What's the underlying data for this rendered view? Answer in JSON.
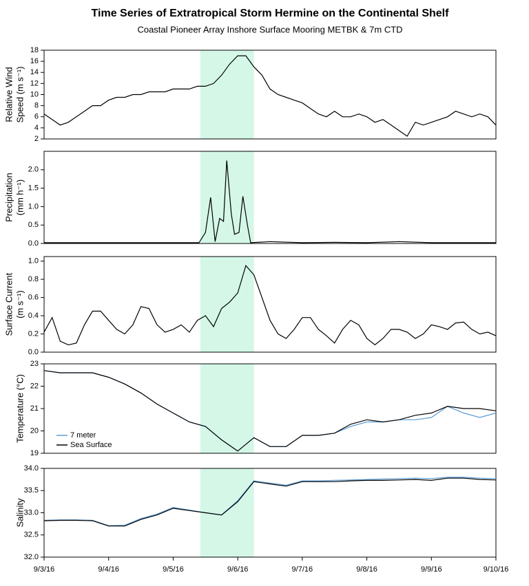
{
  "title": "Time Series of Extratropical Storm Hermine on the Continental Shelf",
  "subtitle": "Coastal Pioneer Array Inshore Surface Mooring METBK & 7m CTD",
  "shade": {
    "from": 2.42,
    "to": 3.25,
    "color": "#d4f7e8"
  },
  "chart_data": [
    {
      "type": "line",
      "ylabel": [
        "Relative Wind",
        "Speed (m s⁻¹)"
      ],
      "x": [
        0,
        0.125,
        0.25,
        0.375,
        0.5,
        0.625,
        0.75,
        0.875,
        1,
        1.125,
        1.25,
        1.375,
        1.5,
        1.625,
        1.75,
        1.875,
        2,
        2.125,
        2.25,
        2.375,
        2.5,
        2.625,
        2.75,
        2.875,
        3,
        3.125,
        3.25,
        3.375,
        3.5,
        3.625,
        3.75,
        3.875,
        4,
        4.125,
        4.25,
        4.375,
        4.5,
        4.625,
        4.75,
        4.875,
        5,
        5.125,
        5.25,
        5.375,
        5.5,
        5.625,
        5.75,
        5.875,
        6,
        6.125,
        6.25,
        6.375,
        6.5,
        6.625,
        6.75,
        6.875,
        7
      ],
      "series": [
        {
          "color": "#000000",
          "values": [
            6.5,
            5.5,
            4.5,
            5.0,
            6.0,
            7.0,
            8.0,
            8.0,
            9.0,
            9.5,
            9.5,
            10.0,
            10.0,
            10.5,
            10.5,
            10.5,
            11.0,
            11.0,
            11.0,
            11.5,
            11.5,
            12.0,
            13.5,
            15.5,
            17.0,
            17.0,
            15.0,
            13.5,
            11.0,
            10.0,
            9.5,
            9.0,
            8.5,
            7.5,
            6.5,
            6.0,
            7.0,
            6.0,
            6.0,
            6.5,
            6.0,
            5.0,
            5.5,
            4.5,
            3.5,
            2.5,
            5.0,
            4.5,
            5.0,
            5.5,
            6.0,
            7.0,
            6.5,
            6.0,
            6.5,
            6.0,
            4.5
          ]
        }
      ],
      "ylim": [
        2,
        18
      ],
      "yticks": [
        2,
        4,
        6,
        8,
        10,
        12,
        14,
        16,
        18
      ]
    },
    {
      "type": "line",
      "ylabel": [
        "Precipitation",
        "(mm h⁻¹)"
      ],
      "x": [
        0,
        0.5,
        1,
        1.5,
        2,
        2.4,
        2.5,
        2.58,
        2.65,
        2.72,
        2.78,
        2.83,
        2.9,
        2.95,
        3.02,
        3.08,
        3.15,
        3.2,
        3.5,
        4,
        4.5,
        5,
        5.5,
        6,
        6.5,
        7
      ],
      "series": [
        {
          "color": "#000000",
          "values": [
            0.02,
            0.02,
            0.02,
            0.02,
            0.02,
            0.02,
            0.3,
            1.25,
            0.05,
            0.68,
            0.6,
            2.25,
            0.8,
            0.25,
            0.3,
            1.28,
            0.5,
            0.02,
            0.05,
            0.02,
            0.03,
            0.02,
            0.05,
            0.02,
            0.02,
            0.02
          ]
        }
      ],
      "ylim": [
        0,
        2.5
      ],
      "yticks": [
        {
          "value": 0,
          "label": "0.0"
        },
        0.5,
        {
          "value": 1,
          "label": "1.0"
        },
        1.5,
        {
          "value": 2,
          "label": "2.0"
        }
      ]
    },
    {
      "type": "line",
      "ylabel": [
        "Surface Current",
        "(m s⁻¹)"
      ],
      "x": [
        0,
        0.125,
        0.25,
        0.375,
        0.5,
        0.625,
        0.75,
        0.875,
        1,
        1.125,
        1.25,
        1.375,
        1.5,
        1.625,
        1.75,
        1.875,
        2,
        2.125,
        2.25,
        2.375,
        2.5,
        2.625,
        2.75,
        2.875,
        3,
        3.125,
        3.25,
        3.375,
        3.5,
        3.625,
        3.75,
        3.875,
        4,
        4.125,
        4.25,
        4.375,
        4.5,
        4.625,
        4.75,
        4.875,
        5,
        5.125,
        5.25,
        5.375,
        5.5,
        5.625,
        5.75,
        5.875,
        6,
        6.125,
        6.25,
        6.375,
        6.5,
        6.625,
        6.75,
        6.875,
        7
      ],
      "series": [
        {
          "color": "#000000",
          "values": [
            0.22,
            0.38,
            0.12,
            0.08,
            0.1,
            0.3,
            0.45,
            0.45,
            0.35,
            0.25,
            0.2,
            0.3,
            0.5,
            0.48,
            0.3,
            0.22,
            0.25,
            0.3,
            0.22,
            0.35,
            0.4,
            0.28,
            0.48,
            0.55,
            0.65,
            0.95,
            0.85,
            0.6,
            0.35,
            0.2,
            0.15,
            0.25,
            0.38,
            0.38,
            0.25,
            0.18,
            0.1,
            0.25,
            0.35,
            0.3,
            0.15,
            0.08,
            0.15,
            0.25,
            0.25,
            0.22,
            0.15,
            0.2,
            0.3,
            0.28,
            0.25,
            0.32,
            0.33,
            0.25,
            0.2,
            0.22,
            0.18
          ]
        }
      ],
      "ylim": [
        0,
        1.05
      ],
      "yticks": [
        {
          "value": 0,
          "label": "0.0"
        },
        0.2,
        0.4,
        0.6,
        0.8,
        {
          "value": 1,
          "label": "1.0"
        }
      ]
    },
    {
      "type": "line",
      "ylabel": [
        "Temperature (°C)"
      ],
      "legend": "lower left",
      "x": [
        0,
        0.25,
        0.5,
        0.75,
        1,
        1.25,
        1.5,
        1.75,
        2,
        2.25,
        2.5,
        2.75,
        3,
        3.25,
        3.5,
        3.75,
        4,
        4.25,
        4.5,
        4.75,
        5,
        5.25,
        5.5,
        5.75,
        6,
        6.25,
        6.5,
        6.75,
        7
      ],
      "series": [
        {
          "name": "7 meter",
          "color": "#5b9bd5",
          "values": [
            22.7,
            22.6,
            22.6,
            22.6,
            22.4,
            22.1,
            21.7,
            21.2,
            20.8,
            20.4,
            20.2,
            19.6,
            19.1,
            19.7,
            19.3,
            19.3,
            19.8,
            19.8,
            19.9,
            20.2,
            20.4,
            20.4,
            20.5,
            20.5,
            20.6,
            21.1,
            20.8,
            20.6,
            20.8
          ]
        },
        {
          "name": "Sea Surface",
          "color": "#000000",
          "values": [
            22.7,
            22.6,
            22.6,
            22.6,
            22.4,
            22.1,
            21.7,
            21.2,
            20.8,
            20.4,
            20.2,
            19.6,
            19.1,
            19.7,
            19.3,
            19.3,
            19.8,
            19.8,
            19.9,
            20.3,
            20.5,
            20.4,
            20.5,
            20.7,
            20.8,
            21.1,
            21.0,
            21.0,
            20.9
          ]
        }
      ],
      "ylim": [
        19,
        23
      ],
      "yticks": [
        19,
        20,
        21,
        22,
        23
      ]
    },
    {
      "type": "line",
      "ylabel": [
        "Salinity"
      ],
      "x": [
        0,
        0.25,
        0.5,
        0.75,
        1,
        1.25,
        1.5,
        1.75,
        2,
        2.25,
        2.5,
        2.75,
        3,
        3.25,
        3.5,
        3.75,
        4,
        4.25,
        4.5,
        4.75,
        5,
        5.25,
        5.5,
        5.75,
        6,
        6.25,
        6.5,
        6.75,
        7
      ],
      "series": [
        {
          "name": "7 meter",
          "color": "#5b9bd5",
          "values": [
            32.83,
            32.84,
            32.84,
            32.83,
            32.71,
            32.72,
            32.87,
            32.97,
            33.12,
            33.06,
            33.0,
            32.95,
            33.27,
            33.72,
            33.67,
            33.62,
            33.72,
            33.72,
            33.73,
            33.74,
            33.75,
            33.76,
            33.77,
            33.78,
            33.77,
            33.8,
            33.8,
            33.78,
            33.77
          ]
        },
        {
          "name": "Sea Surface",
          "color": "#000000",
          "values": [
            32.82,
            32.83,
            32.83,
            32.82,
            32.7,
            32.7,
            32.85,
            32.95,
            33.1,
            33.05,
            33.0,
            32.95,
            33.25,
            33.7,
            33.65,
            33.6,
            33.7,
            33.7,
            33.7,
            33.72,
            33.73,
            33.73,
            33.74,
            33.75,
            33.73,
            33.78,
            33.78,
            33.75,
            33.74
          ]
        }
      ],
      "ylim": [
        32,
        34
      ],
      "yticks": [
        {
          "value": 32,
          "label": "32.0"
        },
        32.5,
        {
          "value": 33,
          "label": "33.0"
        },
        33.5,
        {
          "value": 34,
          "label": "34.0"
        }
      ],
      "xlim": [
        0,
        7
      ],
      "xticks": [
        {
          "value": 0,
          "label": "9/3/16"
        },
        {
          "value": 1,
          "label": "9/4/16"
        },
        {
          "value": 2,
          "label": "9/5/16"
        },
        {
          "value": 3,
          "label": "9/6/16"
        },
        {
          "value": 4,
          "label": "9/7/16"
        },
        {
          "value": 5,
          "label": "9/8/16"
        },
        {
          "value": 6,
          "label": "9/9/16"
        },
        {
          "value": 7,
          "label": "9/10/16"
        }
      ]
    }
  ]
}
